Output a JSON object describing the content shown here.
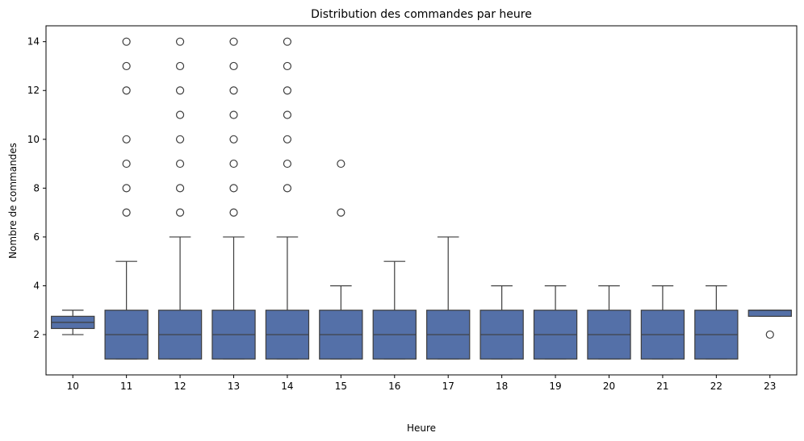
{
  "chart_data": {
    "type": "box",
    "title": "Distribution des commandes par heure",
    "xlabel": "Heure",
    "ylabel": "Nombre de commandes",
    "ylim": [
      0.35,
      14.65
    ],
    "yticks": [
      2,
      4,
      6,
      8,
      10,
      12,
      14
    ],
    "grid": false,
    "box_color": "#5470a8",
    "line_color": "#3d3d3d",
    "categories": [
      "10",
      "11",
      "12",
      "13",
      "14",
      "15",
      "16",
      "17",
      "18",
      "19",
      "20",
      "21",
      "22",
      "23"
    ],
    "boxes": [
      {
        "category": "10",
        "whisker_low": 2,
        "q1": 2.25,
        "median": 2.5,
        "q3": 2.75,
        "whisker_high": 3,
        "outliers": []
      },
      {
        "category": "11",
        "whisker_low": 1,
        "q1": 1,
        "median": 2,
        "q3": 3,
        "whisker_high": 5,
        "outliers": [
          7,
          8,
          9,
          10,
          12,
          13,
          14
        ]
      },
      {
        "category": "12",
        "whisker_low": 1,
        "q1": 1,
        "median": 2,
        "q3": 3,
        "whisker_high": 6,
        "outliers": [
          7,
          8,
          9,
          10,
          11,
          12,
          13,
          14
        ]
      },
      {
        "category": "13",
        "whisker_low": 1,
        "q1": 1,
        "median": 2,
        "q3": 3,
        "whisker_high": 6,
        "outliers": [
          7,
          8,
          9,
          10,
          11,
          12,
          13,
          14
        ]
      },
      {
        "category": "14",
        "whisker_low": 1,
        "q1": 1,
        "median": 2,
        "q3": 3,
        "whisker_high": 6,
        "outliers": [
          8,
          9,
          10,
          11,
          12,
          13,
          14
        ]
      },
      {
        "category": "15",
        "whisker_low": 1,
        "q1": 1,
        "median": 2,
        "q3": 3,
        "whisker_high": 4,
        "outliers": [
          7,
          9
        ]
      },
      {
        "category": "16",
        "whisker_low": 1,
        "q1": 1,
        "median": 2,
        "q3": 3,
        "whisker_high": 5,
        "outliers": []
      },
      {
        "category": "17",
        "whisker_low": 1,
        "q1": 1,
        "median": 2,
        "q3": 3,
        "whisker_high": 6,
        "outliers": []
      },
      {
        "category": "18",
        "whisker_low": 1,
        "q1": 1,
        "median": 2,
        "q3": 3,
        "whisker_high": 4,
        "outliers": []
      },
      {
        "category": "19",
        "whisker_low": 1,
        "q1": 1,
        "median": 2,
        "q3": 3,
        "whisker_high": 4,
        "outliers": []
      },
      {
        "category": "20",
        "whisker_low": 1,
        "q1": 1,
        "median": 2,
        "q3": 3,
        "whisker_high": 4,
        "outliers": []
      },
      {
        "category": "21",
        "whisker_low": 1,
        "q1": 1,
        "median": 2,
        "q3": 3,
        "whisker_high": 4,
        "outliers": []
      },
      {
        "category": "22",
        "whisker_low": 1,
        "q1": 1,
        "median": 2,
        "q3": 3,
        "whisker_high": 4,
        "outliers": []
      },
      {
        "category": "23",
        "whisker_low": 2.75,
        "q1": 2.75,
        "median": 3,
        "q3": 3,
        "whisker_high": 3,
        "outliers": [
          2
        ]
      }
    ]
  }
}
